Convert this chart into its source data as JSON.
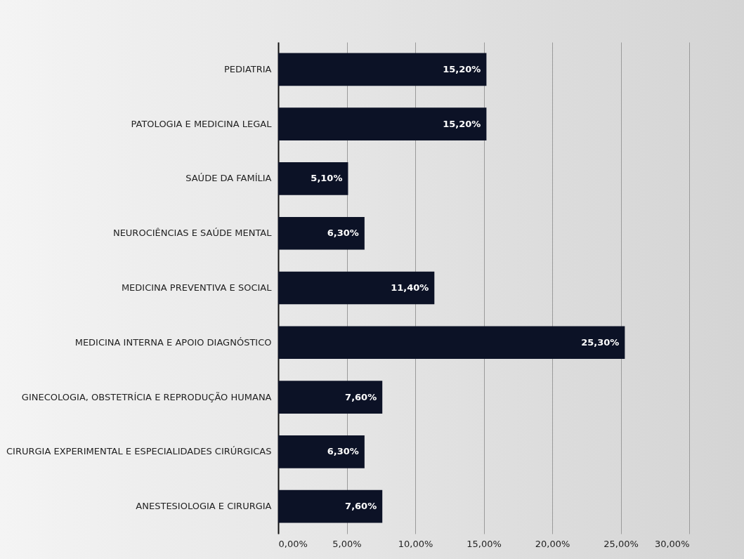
{
  "chart_data": {
    "type": "bar",
    "orientation": "horizontal",
    "categories": [
      "PEDIATRIA",
      "PATOLOGIA E MEDICINA LEGAL",
      "SAÚDE DA FAMÍLIA",
      "NEUROCIÊNCIAS E SAÚDE MENTAL",
      "MEDICINA PREVENTIVA E SOCIAL",
      "MEDICINA INTERNA E APOIO DIAGNÓSTICO",
      "GINECOLOGIA, OBSTETRÍCIA E REPRODUÇÃO HUMANA",
      "CIRURGIA EXPERIMENTAL E ESPECIALIDADES CIRÚRGICAS",
      "ANESTESIOLOGIA E CIRURGIA"
    ],
    "values": [
      15.2,
      15.2,
      5.1,
      6.3,
      11.4,
      25.3,
      7.6,
      6.3,
      7.6
    ],
    "value_labels": [
      "15,20%",
      "15,20%",
      "5,10%",
      "6,30%",
      "11,40%",
      "25,30%",
      "7,60%",
      "6,30%",
      "7,60%"
    ],
    "color": "#0c1226",
    "xlim": [
      0,
      30
    ],
    "xticks": [
      {
        "value": 0,
        "label": "0,00%"
      },
      {
        "value": 5,
        "label": "5,00%"
      },
      {
        "value": 10,
        "label": "10,00%"
      },
      {
        "value": 15,
        "label": "15,00%"
      },
      {
        "value": 20,
        "label": "20,00%"
      },
      {
        "value": 25,
        "label": "25,00%"
      },
      {
        "value": 30,
        "label": "30,00%"
      }
    ],
    "grid": "x"
  }
}
